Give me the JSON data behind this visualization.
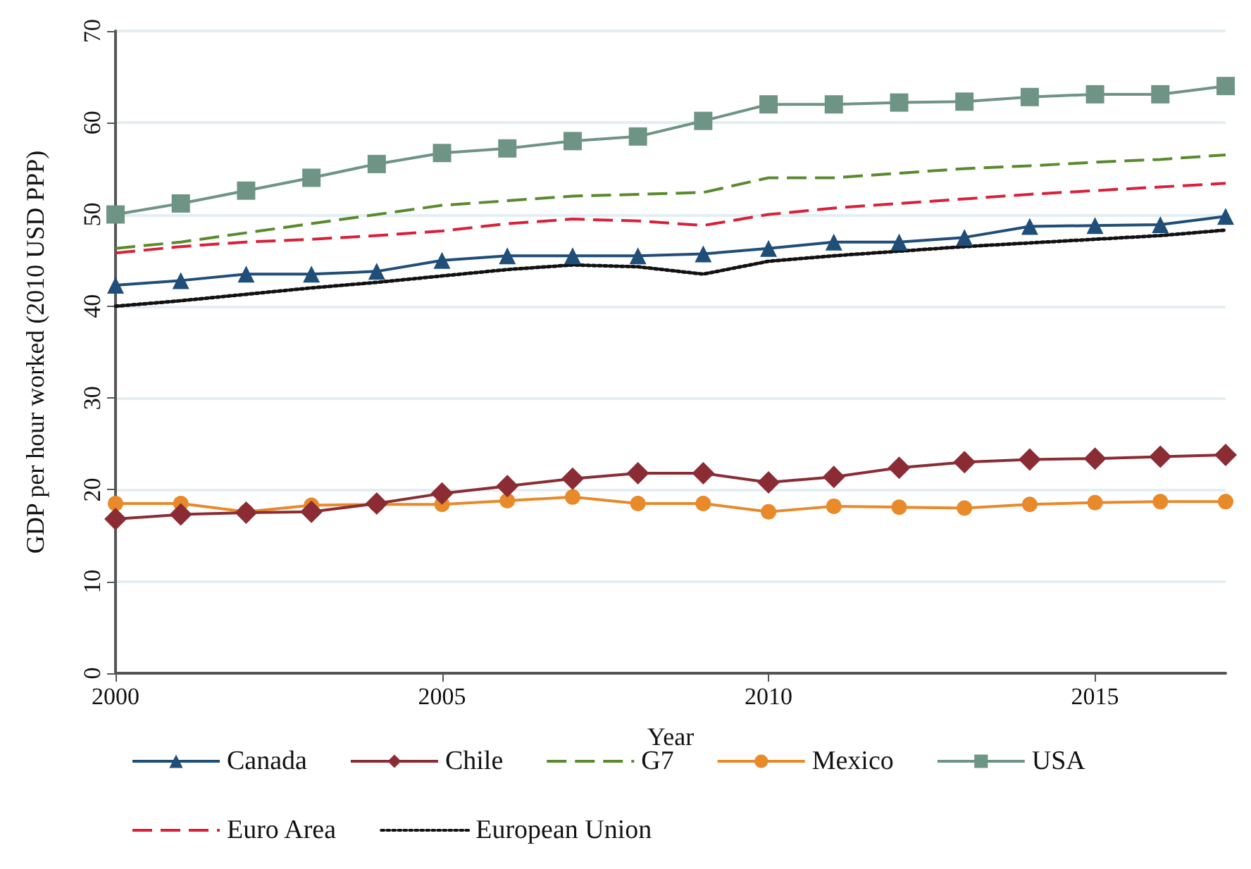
{
  "chart_data": {
    "type": "line",
    "xlabel": "Year",
    "ylabel": "GDP per hour worked (2010 USD PPP)",
    "x": [
      2000,
      2001,
      2002,
      2003,
      2004,
      2005,
      2006,
      2007,
      2008,
      2009,
      2010,
      2011,
      2012,
      2013,
      2014,
      2015,
      2016,
      2017
    ],
    "xlim": [
      2000,
      2017
    ],
    "xticks": [
      2000,
      2005,
      2010,
      2015
    ],
    "ylim": [
      0,
      70
    ],
    "yticks": [
      0,
      10,
      20,
      30,
      40,
      50,
      60,
      70
    ],
    "grid": "y",
    "legend": "bottom",
    "series": [
      {
        "name": "Canada",
        "color": "#1f4e79",
        "marker": "triangle",
        "line_style": "solid",
        "values": [
          42.3,
          42.8,
          43.5,
          43.5,
          43.8,
          45,
          45.5,
          45.5,
          45.5,
          45.7,
          46.3,
          47,
          47,
          47.5,
          48.7,
          48.8,
          48.9,
          49.8
        ]
      },
      {
        "name": "Chile",
        "color": "#8b2c35",
        "marker": "diamond",
        "line_style": "solid",
        "values": [
          16.8,
          17.3,
          17.5,
          17.6,
          18.5,
          19.6,
          20.4,
          21.2,
          21.8,
          21.8,
          20.8,
          21.4,
          22.4,
          23,
          23.3,
          23.4,
          23.6,
          23.8
        ]
      },
      {
        "name": "G7",
        "color": "#5a8a2e",
        "marker": "none",
        "line_style": "dashed",
        "values": [
          46.3,
          47,
          48,
          49,
          50,
          51,
          51.5,
          52,
          52.2,
          52.4,
          54,
          54,
          54.5,
          55,
          55.3,
          55.7,
          56,
          56.5
        ]
      },
      {
        "name": "Mexico",
        "color": "#e8892a",
        "marker": "circle",
        "line_style": "solid",
        "values": [
          18.5,
          18.5,
          17.6,
          18.3,
          18.4,
          18.4,
          18.8,
          19.2,
          18.5,
          18.5,
          17.6,
          18.2,
          18.1,
          18,
          18.4,
          18.6,
          18.7,
          18.7
        ]
      },
      {
        "name": "USA",
        "color": "#6e9486",
        "marker": "square",
        "line_style": "solid",
        "values": [
          50,
          51.2,
          52.6,
          54,
          55.5,
          56.7,
          57.2,
          58,
          58.5,
          60.2,
          62,
          62,
          62.2,
          62.3,
          62.8,
          63.1,
          63.1,
          64
        ]
      },
      {
        "name": "Euro Area",
        "color": "#d9203a",
        "marker": "none",
        "line_style": "dashed",
        "values": [
          45.8,
          46.5,
          47,
          47.3,
          47.7,
          48.2,
          49,
          49.5,
          49.3,
          48.8,
          50,
          50.7,
          51.2,
          51.7,
          52.2,
          52.6,
          53,
          53.4
        ]
      },
      {
        "name": "European Union",
        "color": "#111111",
        "marker": "none",
        "line_style": "dotted",
        "values": [
          40,
          40.6,
          41.3,
          42,
          42.6,
          43.3,
          44,
          44.5,
          44.3,
          43.5,
          44.9,
          45.5,
          46,
          46.5,
          46.9,
          47.3,
          47.7,
          48.3
        ]
      }
    ]
  }
}
